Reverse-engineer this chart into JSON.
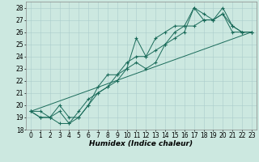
{
  "xlabel": "Humidex (Indice chaleur)",
  "ylabel": "",
  "xlim": [
    -0.5,
    23.5
  ],
  "ylim": [
    18,
    28.5
  ],
  "xticks": [
    0,
    1,
    2,
    3,
    4,
    5,
    6,
    7,
    8,
    9,
    10,
    11,
    12,
    13,
    14,
    15,
    16,
    17,
    18,
    19,
    20,
    21,
    22,
    23
  ],
  "yticks": [
    18,
    19,
    20,
    21,
    22,
    23,
    24,
    25,
    26,
    27,
    28
  ],
  "bg_color": "#cce8e0",
  "grid_color": "#aacccc",
  "line_color": "#1a6b5a",
  "tick_fontsize": 5.5,
  "xlabel_fontsize": 6.5,
  "series": [
    [
      0,
      19.5,
      1,
      19.0,
      2,
      19.0,
      3,
      18.5,
      4,
      18.5,
      5,
      19.5,
      6,
      20.5,
      7,
      21.0,
      8,
      21.5,
      9,
      22.0,
      10,
      23.0,
      11,
      25.5,
      12,
      24.0,
      13,
      25.5,
      14,
      26.0,
      15,
      26.5,
      16,
      26.5,
      17,
      28.0,
      18,
      27.5,
      19,
      27.0,
      20,
      28.0,
      21,
      26.5,
      22,
      26.0,
      23,
      26.0
    ],
    [
      0,
      19.5,
      1,
      19.0,
      2,
      19.0,
      3,
      19.5,
      4,
      18.5,
      5,
      19.0,
      6,
      20.0,
      7,
      21.5,
      8,
      22.5,
      9,
      22.5,
      10,
      23.5,
      11,
      24.0,
      12,
      24.0,
      13,
      24.5,
      14,
      25.0,
      15,
      26.0,
      16,
      26.5,
      17,
      26.5,
      18,
      27.0,
      19,
      27.0,
      20,
      27.5,
      21,
      26.5,
      22,
      26.0,
      23,
      26.0
    ],
    [
      0,
      19.5,
      1,
      19.5,
      2,
      19.0,
      3,
      20.0,
      4,
      19.0,
      5,
      19.0,
      6,
      20.0,
      7,
      21.0,
      8,
      21.5,
      9,
      22.5,
      10,
      23.0,
      11,
      23.5,
      12,
      23.0,
      13,
      23.5,
      14,
      25.0,
      15,
      25.5,
      16,
      26.0,
      17,
      28.0,
      18,
      27.0,
      19,
      27.0,
      20,
      27.5,
      21,
      26.0,
      22,
      26.0,
      23,
      26.0
    ],
    [
      0,
      19.5,
      23,
      26.0
    ]
  ]
}
